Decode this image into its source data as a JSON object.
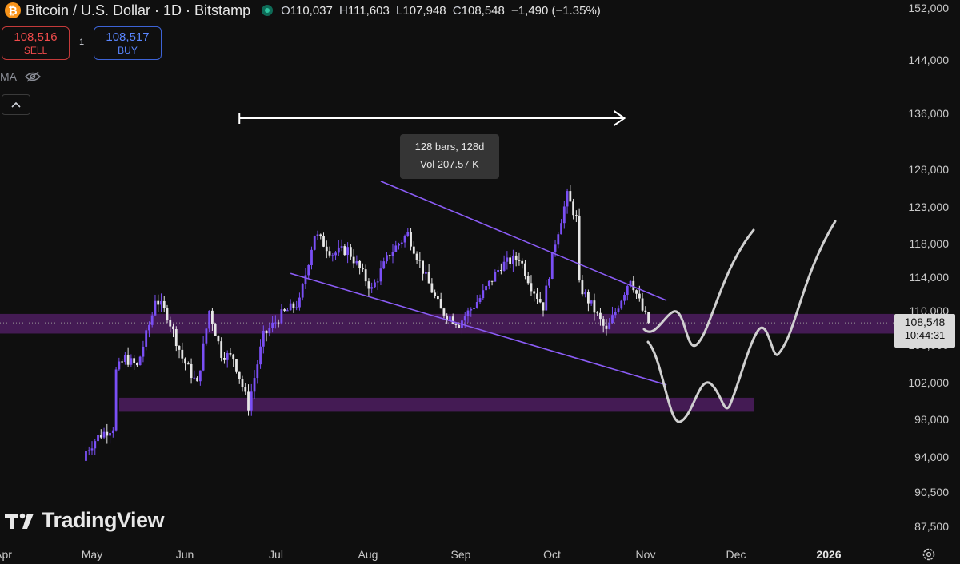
{
  "header": {
    "symbol": "Bitcoin / U.S. Dollar · 1D · Bitstamp",
    "ohlc": [
      {
        "key": "O",
        "value": "110,037"
      },
      {
        "key": "H",
        "value": "111,603"
      },
      {
        "key": "L",
        "value": "107,948"
      },
      {
        "key": "C",
        "value": "108,548"
      }
    ],
    "change": "−1,490 (−1.35%)"
  },
  "trade": {
    "sell_price": "108,516",
    "sell_label": "SELL",
    "spread": "1",
    "buy_price": "108,517",
    "buy_label": "BUY"
  },
  "indicator": {
    "label": "MA",
    "visibility_icon": "eye-off-icon"
  },
  "last_price": {
    "price": "108,548",
    "countdown": "10:44:31"
  },
  "measure_tooltip": {
    "line1": "128 bars, 128d",
    "line2": "Vol 207.57 K"
  },
  "watermark": {
    "brand": "TradingView"
  },
  "colors": {
    "background": "#0f0f0f",
    "candle_up": "#7a4ff5",
    "candle_down": "#e6e6e6",
    "support_zone": "#4a1d5c",
    "trendline": "#8b5cf6",
    "projection": "#d0d0d0",
    "sell": "#f04b4b",
    "buy": "#5a86ff"
  },
  "price_axis": [
    "152,000",
    "144,000",
    "136,000",
    "128,000",
    "123,000",
    "118,000",
    "114,000",
    "110,000",
    "106,000",
    "102,000",
    "98,000",
    "94,000",
    "90,500",
    "87,500"
  ],
  "time_axis": [
    "Apr",
    "May",
    "Jun",
    "Jul",
    "Aug",
    "Sep",
    "Oct",
    "Nov",
    "Dec",
    "2026"
  ],
  "chart_data": {
    "type": "candlestick",
    "title": "Bitcoin / U.S. Dollar · 1D · Bitstamp",
    "interval": "1D",
    "y_scale": "log",
    "ylim": [
      85000,
      156000
    ],
    "x_range": [
      "2025-04-29",
      "2026-01-12"
    ],
    "closes": [
      {
        "date": "2025-04-29",
        "close": 94500
      },
      {
        "date": "2025-05-03",
        "close": 96000
      },
      {
        "date": "2025-05-08",
        "close": 97000
      },
      {
        "date": "2025-05-09",
        "close": 103000
      },
      {
        "date": "2025-05-12",
        "close": 104500
      },
      {
        "date": "2025-05-16",
        "close": 103500
      },
      {
        "date": "2025-05-21",
        "close": 109500
      },
      {
        "date": "2025-05-22",
        "close": 111500
      },
      {
        "date": "2025-05-26",
        "close": 109500
      },
      {
        "date": "2025-05-31",
        "close": 104500
      },
      {
        "date": "2025-06-05",
        "close": 101500
      },
      {
        "date": "2025-06-09",
        "close": 110000
      },
      {
        "date": "2025-06-13",
        "close": 105000
      },
      {
        "date": "2025-06-17",
        "close": 104500
      },
      {
        "date": "2025-06-22",
        "close": 99200
      },
      {
        "date": "2025-06-27",
        "close": 107000
      },
      {
        "date": "2025-07-03",
        "close": 109500
      },
      {
        "date": "2025-07-09",
        "close": 111000
      },
      {
        "date": "2025-07-14",
        "close": 119500
      },
      {
        "date": "2025-07-20",
        "close": 117000
      },
      {
        "date": "2025-07-25",
        "close": 117500
      },
      {
        "date": "2025-08-02",
        "close": 112500
      },
      {
        "date": "2025-08-08",
        "close": 117000
      },
      {
        "date": "2025-08-14",
        "close": 119500
      },
      {
        "date": "2025-08-20",
        "close": 114000
      },
      {
        "date": "2025-08-25",
        "close": 110000
      },
      {
        "date": "2025-08-31",
        "close": 108500
      },
      {
        "date": "2025-09-07",
        "close": 111500
      },
      {
        "date": "2025-09-14",
        "close": 115500
      },
      {
        "date": "2025-09-20",
        "close": 116500
      },
      {
        "date": "2025-09-24",
        "close": 113000
      },
      {
        "date": "2025-09-28",
        "close": 110500
      },
      {
        "date": "2025-10-02",
        "close": 118500
      },
      {
        "date": "2025-10-06",
        "close": 124500
      },
      {
        "date": "2025-10-09",
        "close": 121500
      },
      {
        "date": "2025-10-10",
        "close": 113000
      },
      {
        "date": "2025-10-15",
        "close": 110000
      },
      {
        "date": "2025-10-19",
        "close": 107500
      },
      {
        "date": "2025-10-24",
        "close": 111500
      },
      {
        "date": "2025-10-27",
        "close": 114000
      },
      {
        "date": "2025-10-31",
        "close": 110000
      },
      {
        "date": "2025-11-02",
        "close": 108548
      }
    ],
    "last_close": 108548,
    "annotations": {
      "horizontal_zones": [
        {
          "from": 107300,
          "to": 109600
        },
        {
          "from": 98600,
          "to": 100100
        }
      ],
      "descending_channel": {
        "upper": [
          {
            "date": "2025-08-05",
            "price": 126500
          },
          {
            "date": "2025-11-08",
            "price": 111200
          }
        ],
        "lower": [
          {
            "date": "2025-07-06",
            "price": 114500
          },
          {
            "date": "2025-11-08",
            "price": 101500
          }
        ]
      },
      "date_range_measure": {
        "from": "2025-06-19",
        "to": "2025-10-25",
        "bars": 128,
        "days": 128,
        "volume": "207.57 K"
      }
    }
  }
}
